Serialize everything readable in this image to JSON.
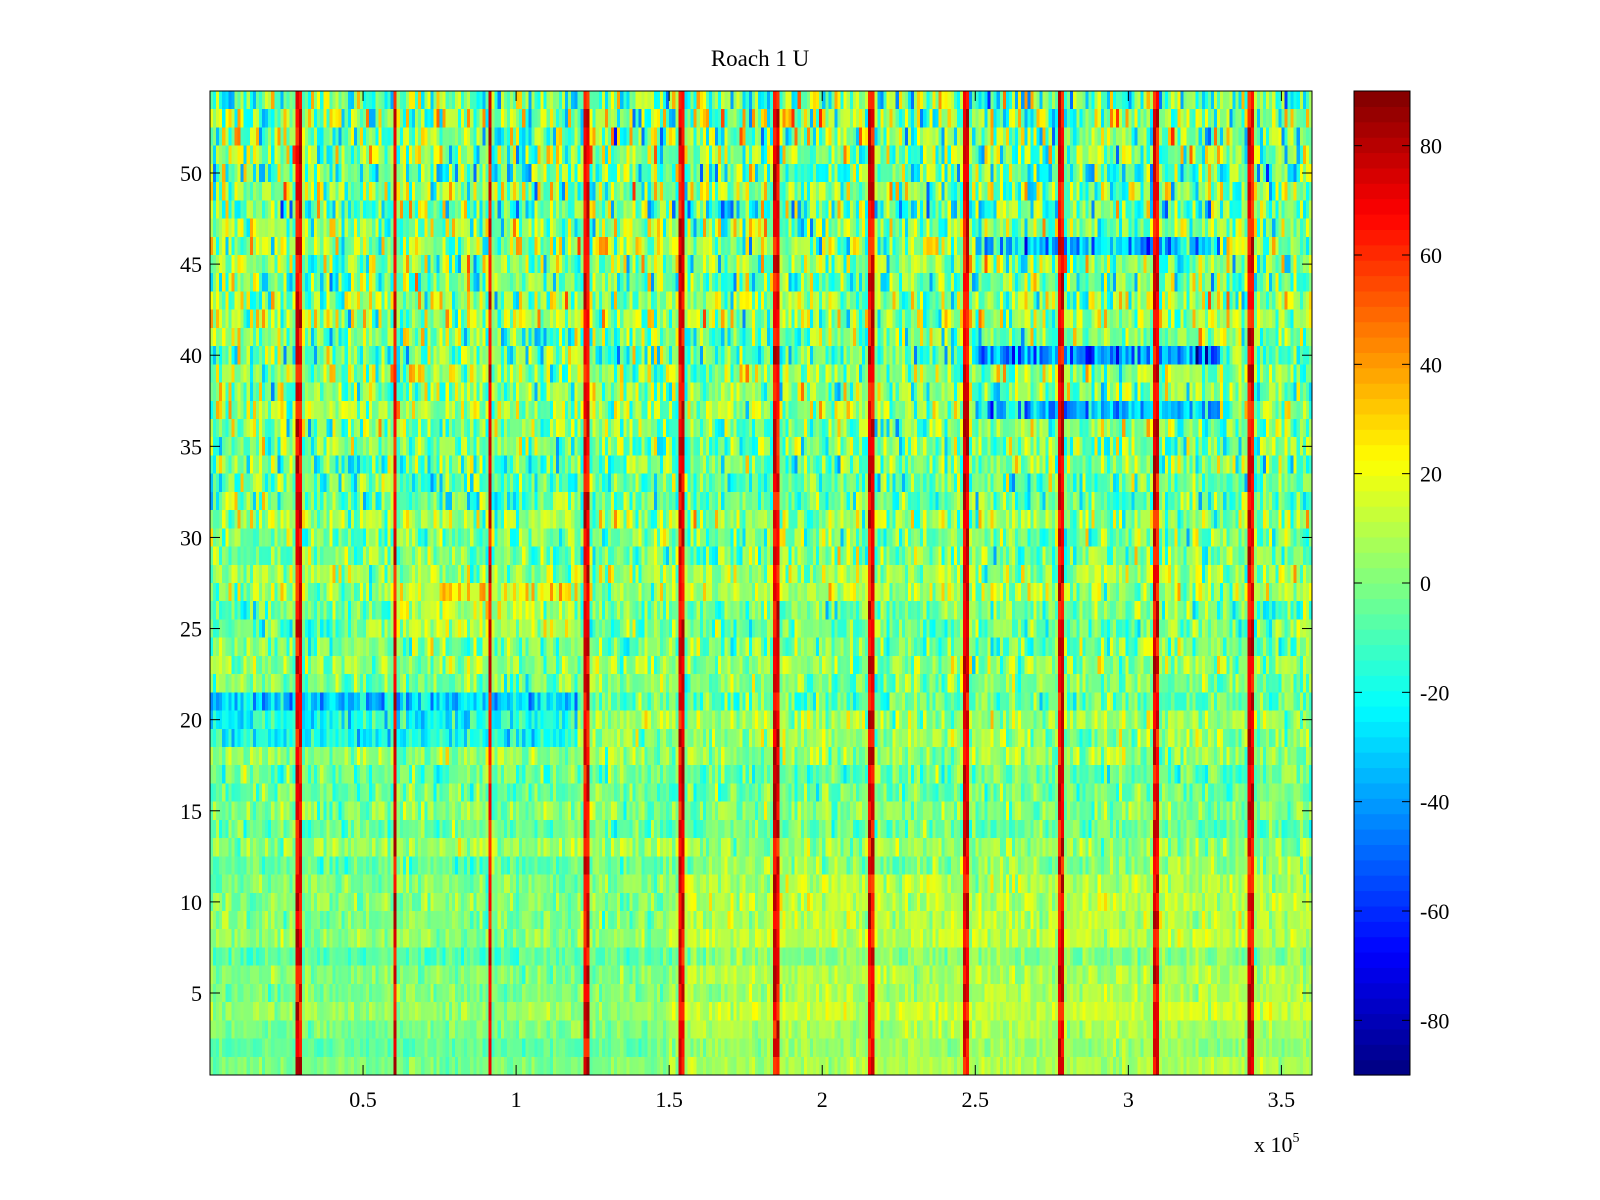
{
  "chart_data": {
    "type": "heatmap",
    "title": "Roach 1 U",
    "xlabel": "",
    "ylabel": "",
    "xlim": [
      0,
      3.6
    ],
    "ylim": [
      0.5,
      54.5
    ],
    "x_multiplier": "x 10",
    "x_multiplier_exponent": "5",
    "x_ticks": [
      0.5,
      1,
      1.5,
      2,
      2.5,
      3,
      3.5
    ],
    "x_tick_labels": [
      "0.5",
      "1",
      "1.5",
      "2",
      "2.5",
      "3",
      "3.5"
    ],
    "y_ticks": [
      5,
      10,
      15,
      20,
      25,
      30,
      35,
      40,
      45,
      50
    ],
    "y_tick_labels": [
      "5",
      "10",
      "15",
      "20",
      "25",
      "30",
      "35",
      "40",
      "45",
      "50"
    ],
    "rows": 54,
    "colormap": "jet",
    "clim": [
      -90,
      90
    ],
    "colorbar_ticks": [
      80,
      60,
      40,
      20,
      0,
      -20,
      -40,
      -60,
      -80
    ],
    "colorbar_tick_labels": [
      "80",
      "60",
      "40",
      "20",
      "0",
      "-20",
      "-40",
      "-60",
      "-80"
    ],
    "colorbar_position": "right",
    "vertical_stripe_x": [
      0.29,
      0.605,
      0.915,
      1.23,
      1.54,
      1.85,
      2.16,
      2.47,
      2.78,
      3.09,
      3.4
    ],
    "row_bias_note": "upper rows noisier; low blue bands near rows 20-21, 36-40 (x 2.5-3.3), 46 (x 2.5-3.3)"
  }
}
